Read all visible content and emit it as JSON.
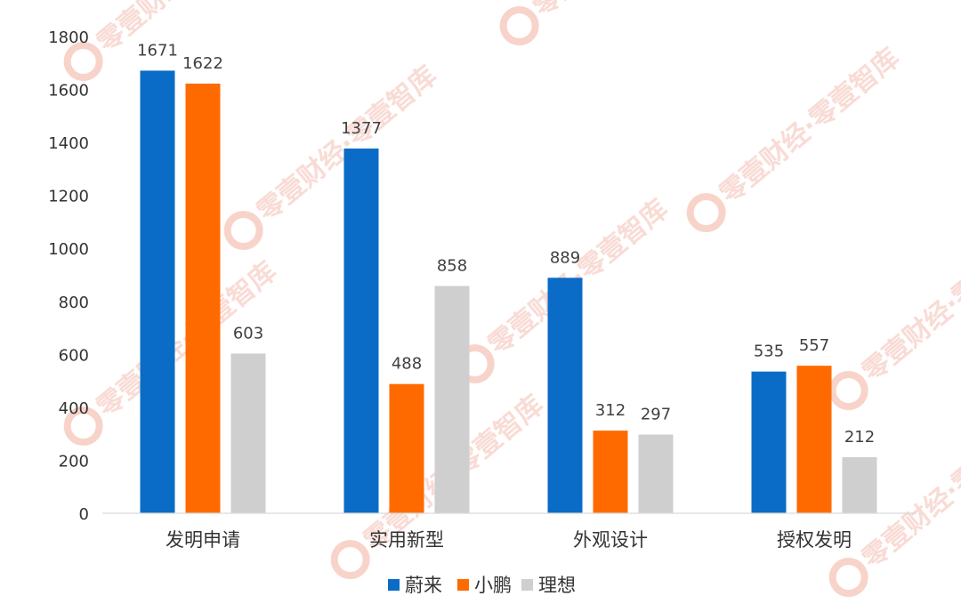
{
  "watermark": {
    "text": "零壹财经·零壹智库",
    "color": "#f0a793"
  },
  "chart_data": {
    "type": "bar",
    "categories": [
      "发明申请",
      "实用新型",
      "外观设计",
      "授权发明"
    ],
    "series": [
      {
        "name": "蔚来",
        "color": "#0a6cc6",
        "values": [
          1671,
          1377,
          889,
          535
        ]
      },
      {
        "name": "小鹏",
        "color": "#ff6a00",
        "values": [
          1622,
          488,
          312,
          557
        ]
      },
      {
        "name": "理想",
        "color": "#cfcfcf",
        "values": [
          603,
          858,
          297,
          212
        ]
      }
    ],
    "ylim": [
      0,
      1800
    ],
    "yticks": [
      0,
      200,
      400,
      600,
      800,
      1000,
      1200,
      1400,
      1600,
      1800
    ],
    "grid": false,
    "legend_position": "bottom-center",
    "data_labels": true
  }
}
